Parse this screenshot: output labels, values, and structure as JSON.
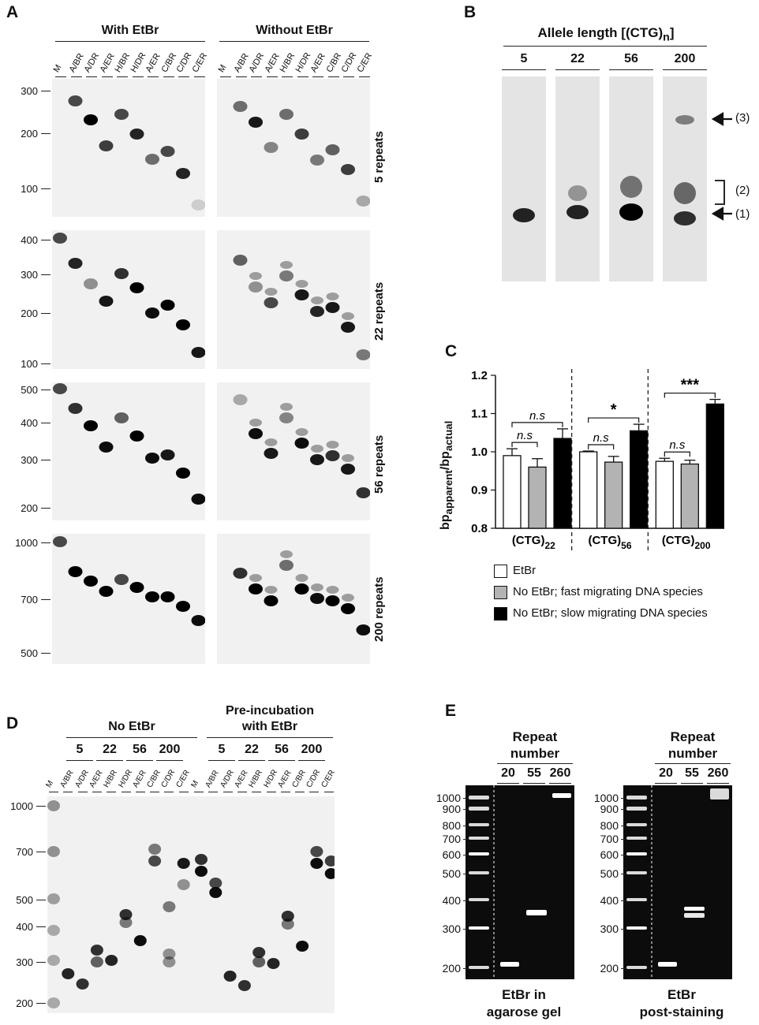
{
  "panel_labels": {
    "a": "A",
    "b": "B",
    "c": "C",
    "d": "D",
    "e": "E"
  },
  "panelA": {
    "group_left": "With EtBr",
    "group_right": "Without EtBr",
    "lanes": [
      "M",
      "A/BR",
      "A/DR",
      "A/ER",
      "H/BR",
      "H/DR",
      "A/ER",
      "C/BR",
      "C/DR",
      "C/ER"
    ],
    "rows": [
      {
        "label": "5 repeats",
        "ticks": [
          "300",
          "200",
          "100"
        ]
      },
      {
        "label": "22 repeats",
        "ticks": [
          "400",
          "300",
          "200",
          "100"
        ]
      },
      {
        "label": "56 repeats",
        "ticks": [
          "500",
          "400",
          "300",
          "200"
        ]
      },
      {
        "label": "200 repeats",
        "ticks": [
          "1000",
          "700",
          "500"
        ]
      }
    ]
  },
  "panelB": {
    "title": "Allele length [(CTG)n]",
    "title_main": "Allele length [(CTG)",
    "title_sub": "n",
    "title_end": "]",
    "columns": [
      "5",
      "22",
      "56",
      "200"
    ],
    "annotations": [
      "(3)",
      "(2)",
      "(1)"
    ]
  },
  "panelC": {
    "ylabel_pre": "bp",
    "ylabel_sub1": "apparent",
    "ylabel_mid": "/bp",
    "ylabel_sub2": "actual",
    "yticks": [
      "1.2",
      "1.1",
      "1.0",
      "0.9",
      "0.8"
    ],
    "significance": [
      "n.s",
      "n.s",
      "*",
      "n.s",
      "***",
      "n.s"
    ],
    "legend": [
      {
        "label": "EtBr",
        "color": "#ffffff"
      },
      {
        "label": "No EtBr; fast migrating DNA species",
        "color": "#b3b3b3"
      },
      {
        "label": "No EtBr; slow migrating DNA species",
        "color": "#000000"
      }
    ]
  },
  "chart_data": {
    "type": "bar",
    "categories": [
      "(CTG)22",
      "(CTG)56",
      "(CTG)200"
    ],
    "category_base": "(CTG)",
    "category_subs": [
      "22",
      "56",
      "200"
    ],
    "series": [
      {
        "name": "EtBr",
        "values": [
          0.99,
          1.0,
          0.975
        ]
      },
      {
        "name": "No EtBr; fast migrating DNA species",
        "values": [
          0.96,
          0.973,
          0.968
        ]
      },
      {
        "name": "No EtBr; slow migrating DNA species",
        "values": [
          1.035,
          1.055,
          1.125
        ]
      }
    ],
    "errors": [
      [
        0.018,
        0.002,
        0.008
      ],
      [
        0.022,
        0.015,
        0.01
      ],
      [
        0.025,
        0.017,
        0.012
      ]
    ],
    "ylabel": "bpapparent/bpactual",
    "ylim": [
      0.8,
      1.2
    ]
  },
  "panelD": {
    "group_left": "No EtBr",
    "group_right": "Pre-incubation with EtBr",
    "group_right_l1": "Pre-incubation",
    "group_right_l2": "with EtBr",
    "repeats": [
      "5",
      "22",
      "56",
      "200"
    ],
    "lanes": [
      "M",
      "A/BR",
      "A/DR",
      "A/ER",
      "H/BR",
      "H/DR",
      "A/ER",
      "C/BR",
      "C/DR",
      "C/ER"
    ],
    "ticks": [
      "1000",
      "700",
      "500",
      "400",
      "300",
      "200"
    ]
  },
  "panelE": {
    "header_l1": "Repeat",
    "header_l2": "number",
    "columns": [
      "20",
      "55",
      "260"
    ],
    "ticks": [
      "1000",
      "900",
      "800",
      "700",
      "600",
      "500",
      "400",
      "300",
      "200"
    ],
    "caption_left_l1": "EtBr in",
    "caption_left_l2": "agarose gel",
    "caption_right_l1": "EtBr",
    "caption_right_l2": "post-staining"
  }
}
